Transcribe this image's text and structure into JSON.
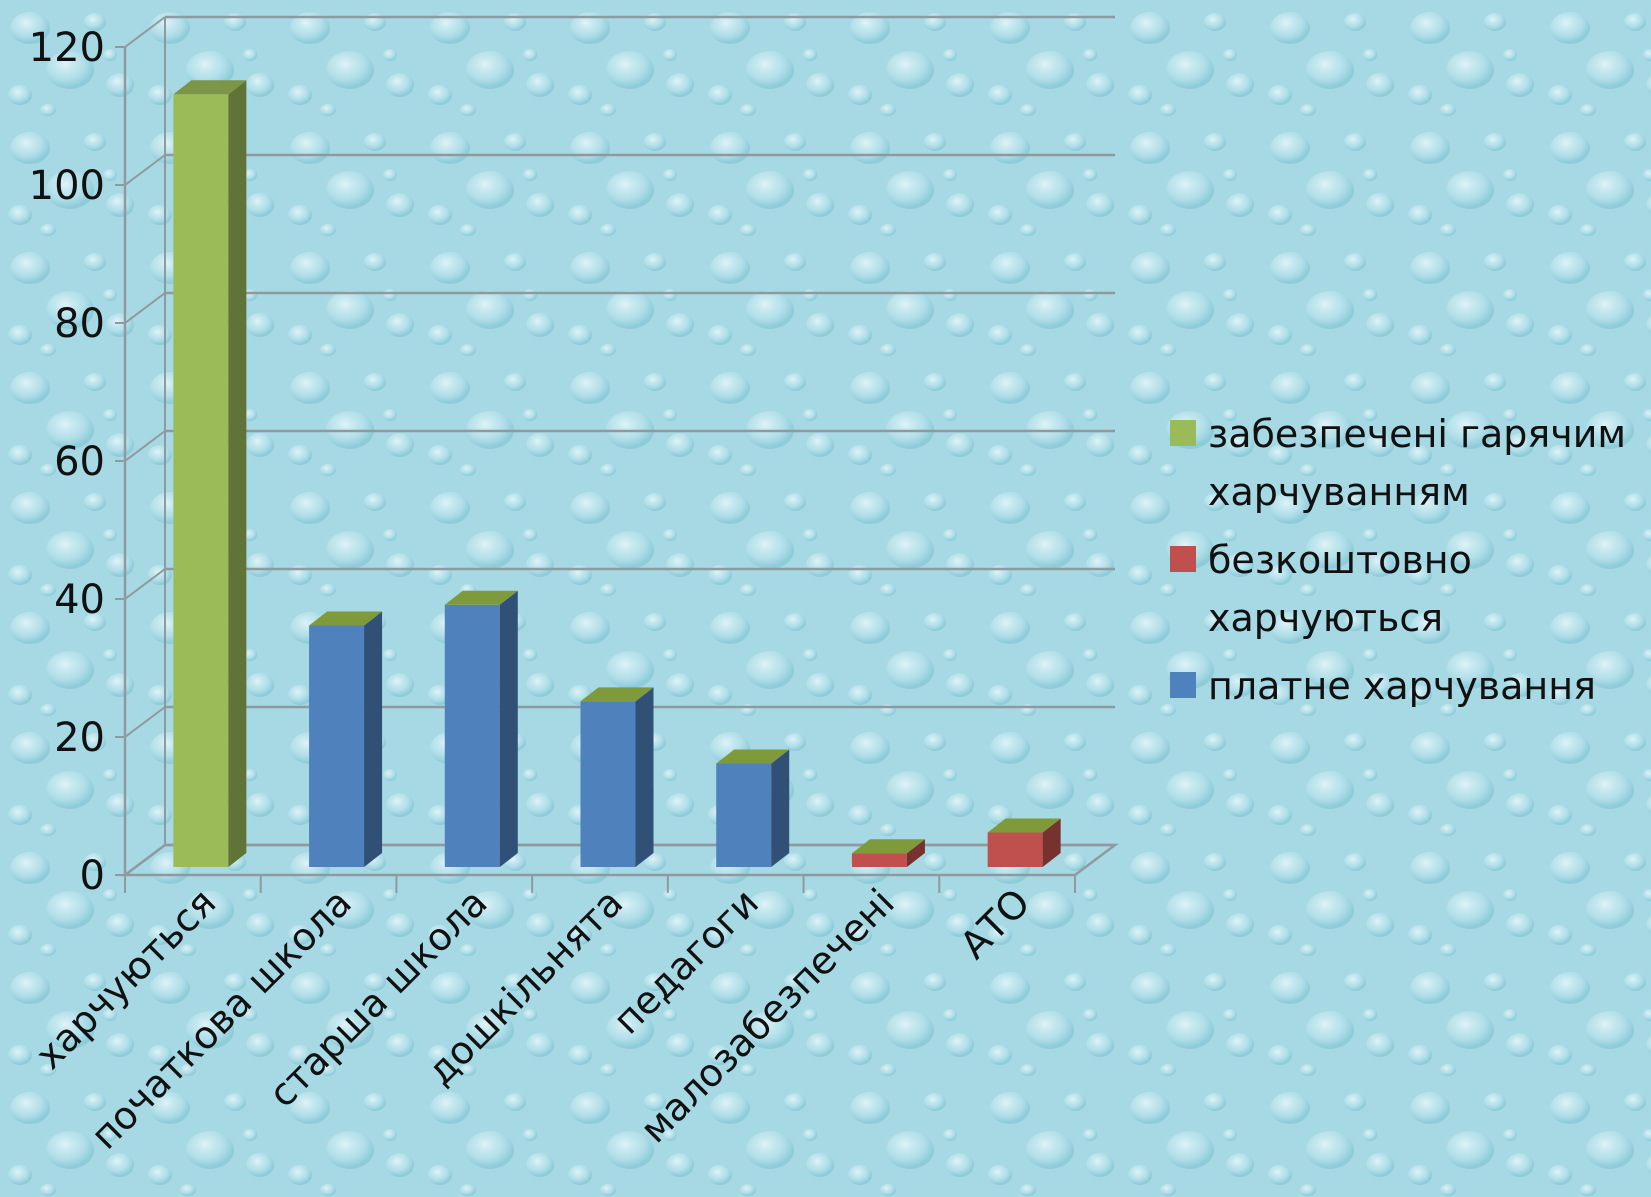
{
  "colors": {
    "background": "#a9dbe6",
    "grid": "#8f9aa0",
    "green": "#9bbb59",
    "red": "#c0504d",
    "blue": "#4f81bd"
  },
  "chart_data": {
    "type": "bar",
    "title": "",
    "xlabel": "",
    "ylabel": "",
    "ylim": [
      0,
      120
    ],
    "yticks": [
      "0",
      "20",
      "40",
      "60",
      "80",
      "100",
      "120"
    ],
    "grid": true,
    "legend_position": "right",
    "categories": [
      "харчуються",
      "початкова школа",
      "старша школа",
      "дошкільнята",
      "педагоги",
      "малозабезпечені",
      "АТО"
    ],
    "series": [
      {
        "name": "забезпечені гарячим харчуванням",
        "color": "#9bbb59",
        "values": [
          112,
          null,
          null,
          null,
          null,
          null,
          null
        ]
      },
      {
        "name": "безкоштовно харчуються",
        "color": "#c0504d",
        "values": [
          null,
          null,
          null,
          null,
          null,
          2,
          5
        ]
      },
      {
        "name": "платне харчування",
        "color": "#4f81bd",
        "values": [
          null,
          35,
          38,
          24,
          15,
          null,
          null
        ]
      }
    ]
  }
}
